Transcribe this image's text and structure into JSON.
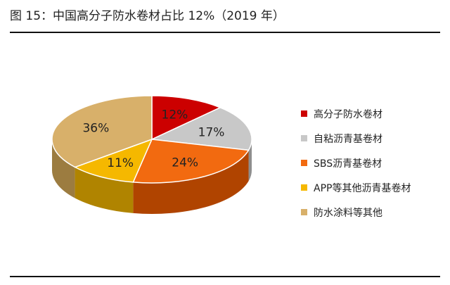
{
  "figure": {
    "title": "图 15：中国高分子防水卷材占比 12%（2019 年）"
  },
  "chart_data": {
    "type": "pie",
    "title": "中国高分子防水卷材占比 12%（2019 年）",
    "legend_position": "right",
    "slices": [
      {
        "name": "高分子防水卷材",
        "value": 12,
        "label": "12%",
        "color": "#cc0000",
        "side_color": "#8c0000"
      },
      {
        "name": "自粘沥青基卷材",
        "value": 17,
        "label": "17%",
        "color": "#c8c8c8",
        "side_color": "#8e8e8e"
      },
      {
        "name": "SBS沥青基卷材",
        "value": 24,
        "label": "24%",
        "color": "#f26a10",
        "side_color": "#b04400"
      },
      {
        "name": "APP等其他沥青基卷材",
        "value": 11,
        "label": "11%",
        "color": "#f5b800",
        "side_color": "#b08400"
      },
      {
        "name": "防水涂料等其他",
        "value": 36,
        "label": "36%",
        "color": "#d8b06a",
        "side_color": "#9c7c40"
      }
    ]
  }
}
